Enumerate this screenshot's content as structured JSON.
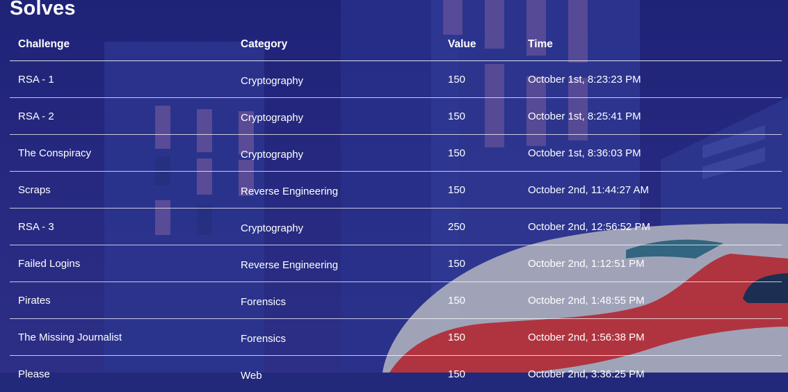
{
  "page": {
    "title": "Solves"
  },
  "table": {
    "headers": [
      "Challenge",
      "Category",
      "Value",
      "Time"
    ],
    "rows": [
      {
        "challenge": "RSA - 1",
        "category": "Cryptography",
        "value": "150",
        "time": "October 1st, 8:23:23 PM"
      },
      {
        "challenge": "RSA - 2",
        "category": "Cryptography",
        "value": "150",
        "time": "October 1st, 8:25:41 PM"
      },
      {
        "challenge": "The Conspiracy",
        "category": "Cryptography",
        "value": "150",
        "time": "October 1st, 8:36:03 PM"
      },
      {
        "challenge": "Scraps",
        "category": "Reverse Engineering",
        "value": "150",
        "time": "October 2nd, 11:44:27 AM"
      },
      {
        "challenge": "RSA - 3",
        "category": "Cryptography",
        "value": "250",
        "time": "October 2nd, 12:56:52 PM"
      },
      {
        "challenge": "Failed Logins",
        "category": "Reverse Engineering",
        "value": "150",
        "time": "October 2nd, 1:12:51 PM"
      },
      {
        "challenge": "Pirates",
        "category": "Forensics",
        "value": "150",
        "time": "October 2nd, 1:48:55 PM"
      },
      {
        "challenge": "The Missing Journalist",
        "category": "Forensics",
        "value": "150",
        "time": "October 2nd, 1:56:38 PM"
      },
      {
        "challenge": "Please",
        "category": "Web",
        "value": "150",
        "time": "October 2nd, 3:36:25 PM"
      }
    ]
  },
  "colors": {
    "background": "#23297a",
    "building": "#2f3a92",
    "window": "#6b5aa0",
    "train_body": "#9aa0b4",
    "train_stripe": "#b0343f",
    "train_window": "#1c2f52"
  }
}
